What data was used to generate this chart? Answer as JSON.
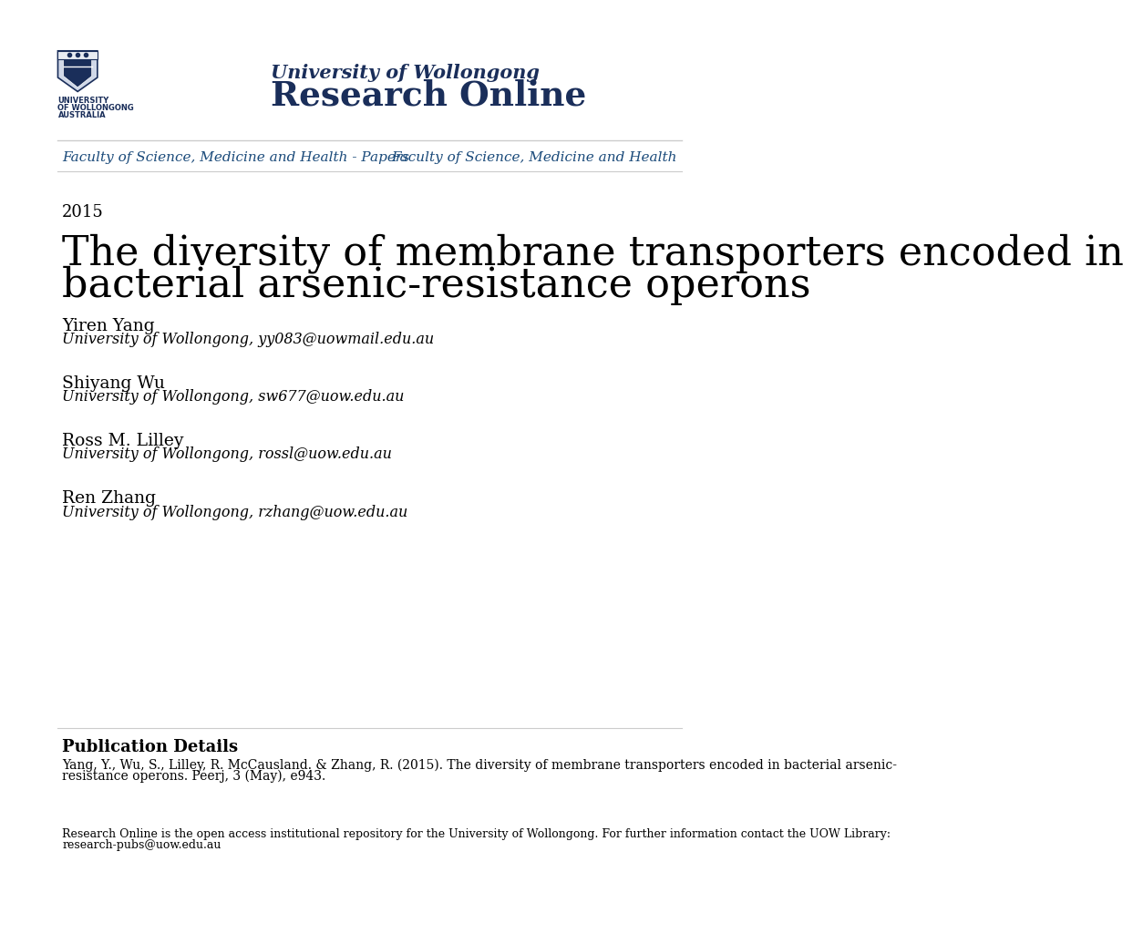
{
  "bg_color": "#ffffff",
  "header_line_color": "#cccccc",
  "uow_color": "#1a2e5a",
  "link_color": "#1a4a7a",
  "year": "2015",
  "title_line1": "The diversity of membrane transporters encoded in",
  "title_line2": "bacterial arsenic-resistance operons",
  "authors": [
    {
      "name": "Yiren Yang",
      "affil": "University of Wollongong",
      "email": "yy083@uowmail.edu.au"
    },
    {
      "name": "Shiyang Wu",
      "affil": "University of Wollongong",
      "email": "sw677@uow.edu.au"
    },
    {
      "name": "Ross M. Lilley",
      "affil": "University of Wollongong",
      "email": "rossl@uow.edu.au"
    },
    {
      "name": "Ren Zhang",
      "affil": "University of Wollongong",
      "email": "rzhang@uow.edu.au"
    }
  ],
  "header_uow_line1": "University of Wollongong",
  "header_uow_line2": "Research Online",
  "nav_left": "Faculty of Science, Medicine and Health - Papers",
  "nav_right": "Faculty of Science, Medicine and Health",
  "pub_details_title": "Publication Details",
  "pub_details_line1": "Yang, Y., Wu, S., Lilley, R. McCausland. & Zhang, R. (2015). The diversity of membrane transporters encoded in bacterial arsenic-",
  "pub_details_line2": "resistance operons. Peerj, 3 (May), e943.",
  "footer_line1": "Research Online is the open access institutional repository for the University of Wollongong. For further information contact the UOW Library:",
  "footer_line2": "research-pubs@uow.edu.au"
}
